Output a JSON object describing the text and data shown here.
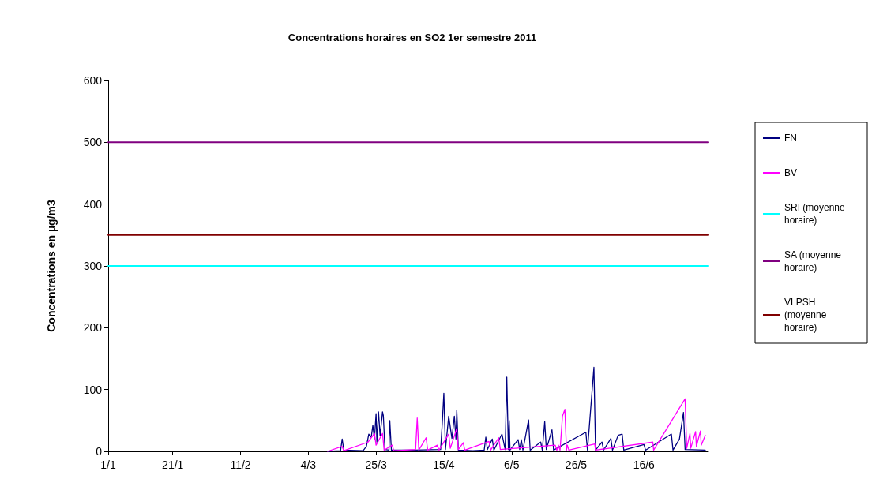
{
  "chart_data": {
    "type": "line",
    "title": "Concentrations horaires en SO2 1er semestre 2011",
    "ylabel": "Concentrations en µg/m3",
    "xlim": [
      "--01-01",
      "--07-06"
    ],
    "xticks": [
      {
        "value": "--01-01",
        "label": "1/1"
      },
      {
        "value": "--01-21",
        "label": "21/1"
      },
      {
        "value": "--02-11",
        "label": "11/2"
      },
      {
        "value": "--03-04",
        "label": "4/3"
      },
      {
        "value": "--03-25",
        "label": "25/3"
      },
      {
        "value": "--04-15",
        "label": "15/4"
      },
      {
        "value": "--05-06",
        "label": "6/5"
      },
      {
        "value": "--05-26",
        "label": "26/5"
      },
      {
        "value": "--06-16",
        "label": "16/6"
      }
    ],
    "ylim": [
      0,
      600
    ],
    "yticks": [
      0,
      100,
      200,
      300,
      400,
      500,
      600
    ],
    "grid": false,
    "legend": "right",
    "marker": "none",
    "line_style": "solid",
    "series": [
      {
        "name": "FN",
        "color": "#000080",
        "x": [
          "--03-10",
          "--03-14",
          "--03-14T12:00",
          "--03-15",
          "--03-21",
          "--03-22",
          "--03-22T18:00",
          "--03-23T12:00",
          "--03-24",
          "--03-24T12:00",
          "--03-25",
          "--03-25T06:00",
          "--03-25T18:00",
          "--03-26T06:00",
          "--03-27",
          "--03-27T06:00",
          "--03-27T18:00",
          "--03-29",
          "--03-29T06:00",
          "--03-29T18:00",
          "--04-06",
          "--04-14",
          "--04-14T12:00",
          "--04-15",
          "--04-15T12:00",
          "--04-16T12:00",
          "--04-17T12:00",
          "--04-18T06:00",
          "--04-18T18:00",
          "--04-19",
          "--04-19T12:00",
          "--04-24",
          "--04-27T12:00",
          "--04-28",
          "--04-28T12:00",
          "--04-30",
          "--04-30T12:00",
          "--05-03",
          "--05-04",
          "--05-04T12:00",
          "--05-05",
          "--05-05T06:00",
          "--05-05T12:00",
          "--05-08",
          "--05-08T12:00",
          "--05-09",
          "--05-09T12:00",
          "--05-11T06:00",
          "--05-11T18:00",
          "--05-15",
          "--05-15T12:00",
          "--05-16T06:00",
          "--05-16T18:00",
          "--05-18T12:00",
          "--05-19",
          "--05-29",
          "--05-29T12:00",
          "--05-31T12:00",
          "--06-01",
          "--06-03",
          "--06-03T12:00",
          "--06-05T18:00",
          "--06-06T06:00",
          "--06-08",
          "--06-09T06:00",
          "--06-09T18:00",
          "--06-16",
          "--06-16T12:00",
          "--06-24T12:00",
          "--06-25",
          "--06-27",
          "--06-28T06:00",
          "--06-28T18:00",
          "--07-05"
        ],
        "values": [
          0,
          1,
          20,
          2,
          1,
          8,
          28,
          23,
          42,
          20,
          61,
          15,
          64,
          25,
          64,
          58,
          3,
          2,
          50,
          2,
          2,
          3,
          45,
          94,
          3,
          57,
          21,
          57,
          20,
          67,
          2,
          1,
          2,
          23,
          3,
          20,
          2,
          28,
          3,
          120,
          3,
          50,
          2,
          19,
          3,
          19,
          2,
          51,
          2,
          15,
          2,
          48,
          3,
          35,
          2,
          31,
          2,
          136,
          2,
          15,
          2,
          21,
          2,
          26,
          28,
          2,
          11,
          2,
          28,
          2,
          20,
          63,
          3,
          2
        ]
      },
      {
        "name": "BV",
        "color": "#ff00ff",
        "x": [
          "--03-10",
          "--03-14T12:00",
          "--03-15",
          "--03-22T12:00",
          "--03-24T12:00",
          "--03-25",
          "--03-27",
          "--03-27T12:00",
          "--03-30",
          "--03-30T12:00",
          "--04-06T06:00",
          "--04-06T18:00",
          "--04-07T06:00",
          "--04-09T12:00",
          "--04-10",
          "--04-13",
          "--04-13T12:00",
          "--04-16T12:00",
          "--04-17",
          "--04-19",
          "--04-19T12:00",
          "--04-21",
          "--04-21T12:00",
          "--04-29",
          "--04-29T12:00",
          "--05-02",
          "--05-02T12:00",
          "--05-19T12:00",
          "--05-20",
          "--05-20T12:00",
          "--05-21",
          "--05-21T18:00",
          "--05-22T12:00",
          "--05-23",
          "--05-23T06:00",
          "--05-23T18:00",
          "--05-31T18:00",
          "--06-01",
          "--06-18T18:00",
          "--06-19",
          "--06-28T18:00",
          "--06-29T06:00",
          "--06-30T06:00",
          "--06-30T12:00",
          "--07-02",
          "--07-02T06:00",
          "--07-03T12:00",
          "--07-03T18:00",
          "--07-05"
        ],
        "values": [
          0,
          8,
          1,
          15,
          29,
          10,
          29,
          2,
          10,
          1,
          3,
          54,
          2,
          22,
          2,
          10,
          2,
          28,
          5,
          37,
          3,
          14,
          2,
          16,
          2,
          22,
          3,
          10,
          2,
          10,
          2,
          57,
          68,
          2,
          10,
          2,
          12,
          2,
          15,
          2,
          85,
          5,
          29,
          5,
          32,
          8,
          33,
          10,
          26
        ]
      },
      {
        "name": "SRI (moyenne horaire)",
        "color": "#00ffff",
        "x": [
          "--01-01",
          "--07-06"
        ],
        "values": [
          300,
          300
        ]
      },
      {
        "name": "SA (moyenne horaire)",
        "color": "#800080",
        "x": [
          "--01-01",
          "--07-06"
        ],
        "values": [
          500,
          500
        ]
      },
      {
        "name": "VLPSH (moyenne horaire)",
        "color": "#800000",
        "x": [
          "--01-01",
          "--07-06"
        ],
        "values": [
          350,
          350
        ]
      }
    ]
  }
}
